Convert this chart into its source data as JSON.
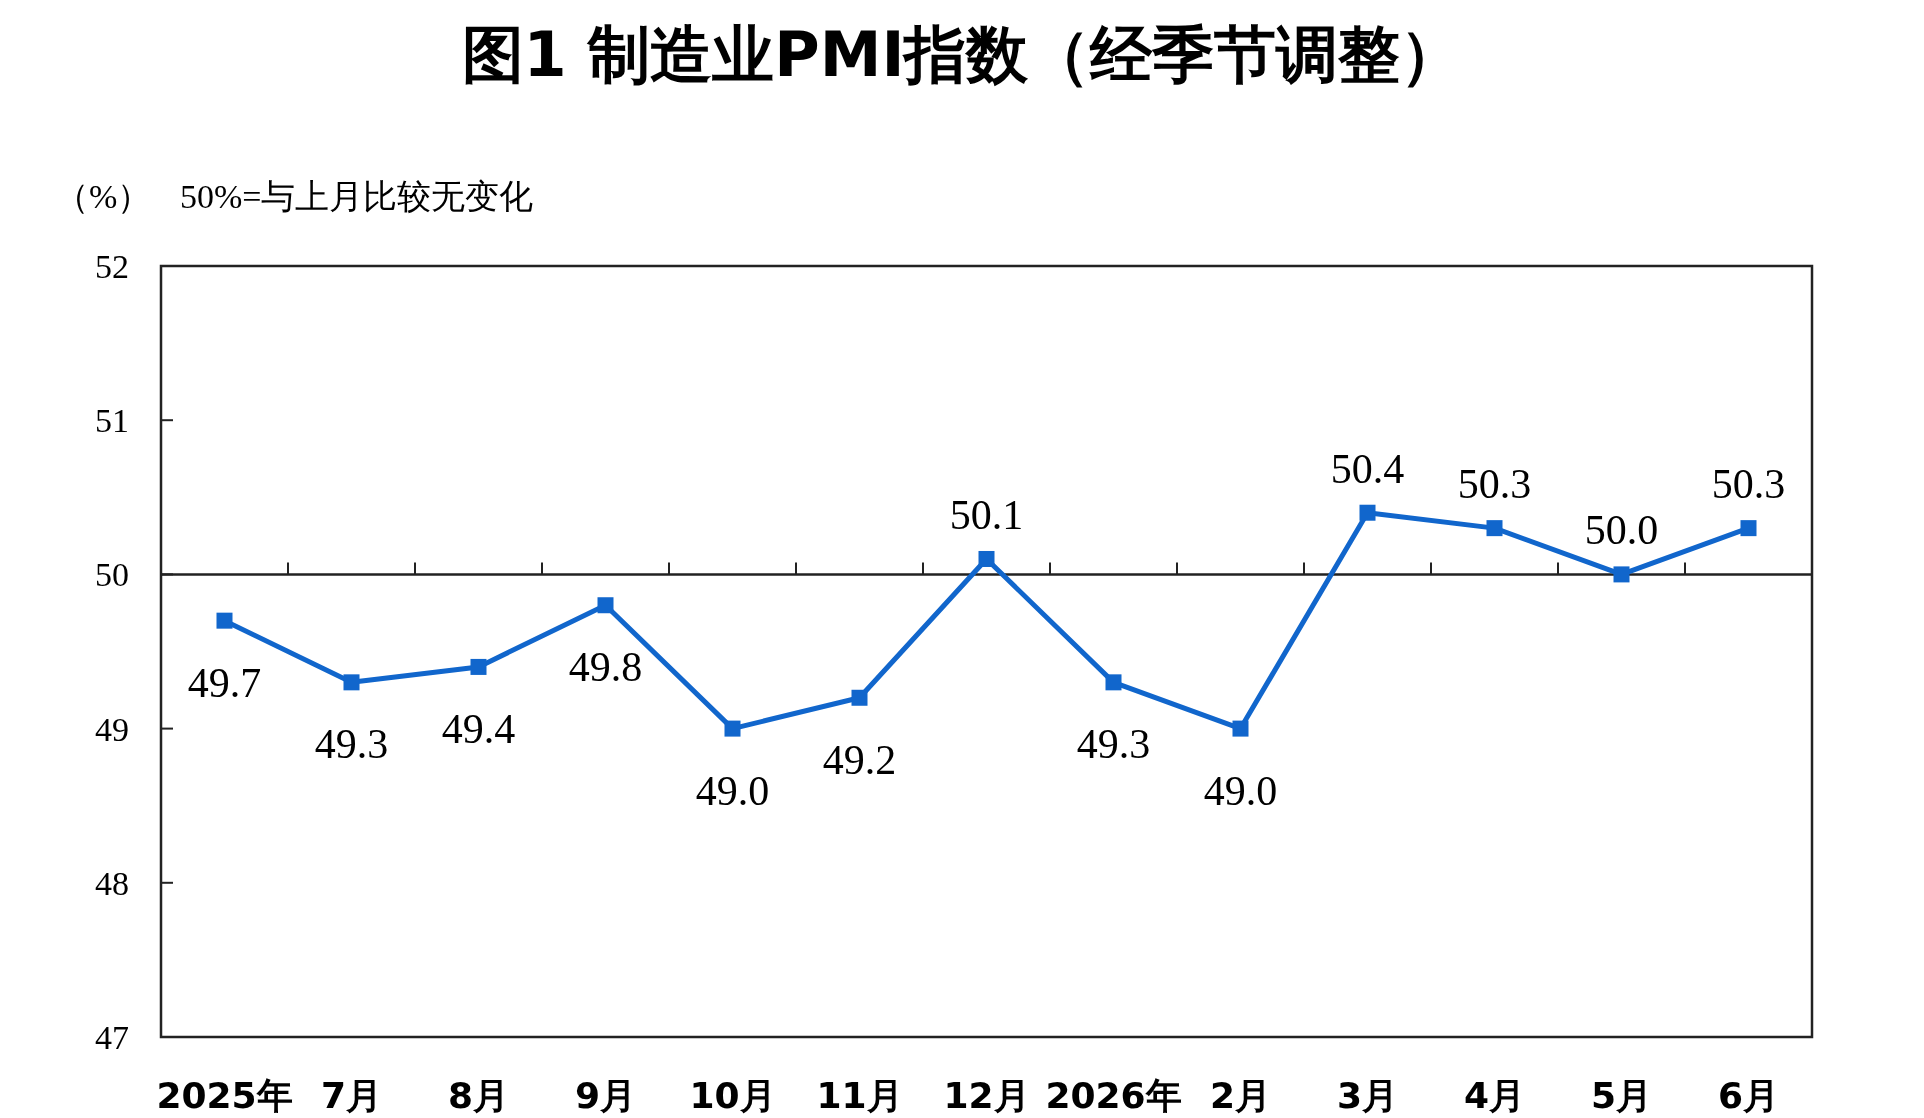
{
  "chart_data": {
    "type": "line",
    "title": "图1 制造业PMI指数（经季节调整）",
    "ylabel": "（%）",
    "annotations": [
      "50%=与上月比较无变化"
    ],
    "categories": [
      "2025年",
      "7月",
      "8月",
      "9月",
      "10月",
      "11月",
      "12月",
      "2026年",
      "2月",
      "3月",
      "4月",
      "5月",
      "6月"
    ],
    "values": [
      49.7,
      49.3,
      49.4,
      49.8,
      49.0,
      49.2,
      50.1,
      49.3,
      49.0,
      50.4,
      50.3,
      50.0,
      50.3
    ],
    "value_labels": [
      "49.7",
      "49.3",
      "49.4",
      "49.8",
      "49.0",
      "49.2",
      "50.1",
      "49.3",
      "49.0",
      "50.4",
      "50.3",
      "50.0",
      "50.3"
    ],
    "color": "#1166cc",
    "marker": "square",
    "ylim": [
      47,
      52
    ],
    "yticks": [
      47,
      48,
      49,
      50,
      51,
      52
    ],
    "ref_lines": [
      {
        "axis": "y",
        "value": 50
      }
    ]
  }
}
